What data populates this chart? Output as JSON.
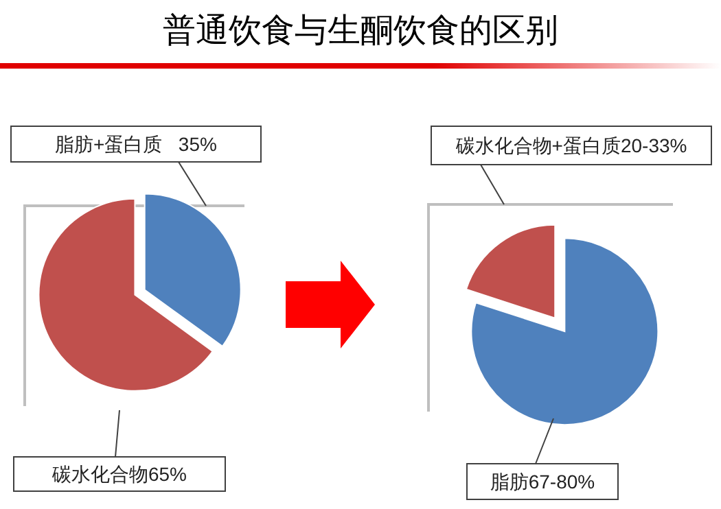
{
  "chart_data": [
    {
      "type": "pie",
      "title": "普通饮食与生酮饮食的区别",
      "categories": [
        "脂肪+蛋白质",
        "碳水化合物"
      ],
      "values": [
        35,
        65
      ],
      "colors": [
        "#4f81bd",
        "#c0504d"
      ],
      "value_labels": [
        "35%",
        "65%"
      ]
    },
    {
      "type": "pie",
      "categories": [
        "脂肪67-80%",
        "碳水化合物+蛋白质20-33%"
      ],
      "values": [
        80,
        20
      ],
      "colors": [
        "#4f81bd",
        "#c0504d"
      ]
    }
  ]
}
